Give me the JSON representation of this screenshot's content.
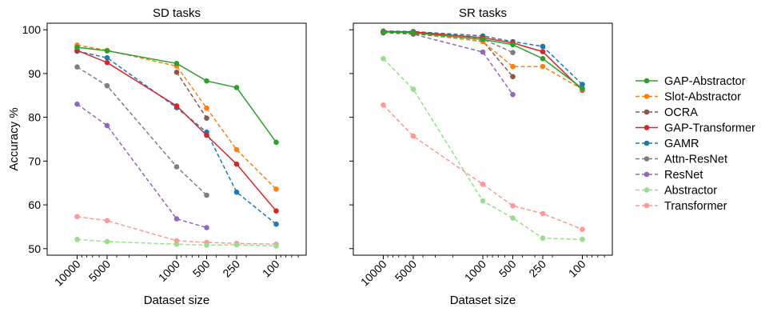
{
  "figure": {
    "ylabel": "Accuracy %",
    "xlabel": "Dataset size"
  },
  "legend": {
    "placement": "right",
    "entries": [
      {
        "name": "GAP-Abstractor",
        "color": "#2ca02c",
        "dashed": false
      },
      {
        "name": "Slot-Abstractor",
        "color": "#ff7f0e",
        "dashed": true
      },
      {
        "name": "OCRA",
        "color": "#8c564b",
        "dashed": true
      },
      {
        "name": "GAP-Transformer",
        "color": "#d62728",
        "dashed": false
      },
      {
        "name": "GAMR",
        "color": "#1f77b4",
        "dashed": true
      },
      {
        "name": "Attn-ResNet",
        "color": "#7f7f7f",
        "dashed": true
      },
      {
        "name": "ResNet",
        "color": "#9467bd",
        "dashed": true
      },
      {
        "name": "Abstractor",
        "color": "#98df8a",
        "dashed": true
      },
      {
        "name": "Transformer",
        "color": "#ff9896",
        "dashed": true
      }
    ]
  },
  "chart_data": [
    {
      "type": "line",
      "title": "SD tasks",
      "xlabel": "Dataset size",
      "ylabel": "Accuracy %",
      "xscale": "log",
      "xaxis_reversed": true,
      "xticks": [
        10000,
        5000,
        1000,
        500,
        250,
        100
      ],
      "yticks": [
        50,
        60,
        70,
        80,
        90,
        100
      ],
      "ylim": [
        48.5,
        101.5
      ],
      "series": [
        {
          "name": "GAP-Abstractor",
          "x": [
            10000,
            5000,
            1000,
            500,
            250,
            100
          ],
          "y": [
            96.0,
            95.2,
            92.3,
            88.3,
            86.8,
            74.3
          ]
        },
        {
          "name": "Slot-Abstractor",
          "x": [
            10000,
            5000,
            1000,
            500,
            250,
            100
          ],
          "y": [
            96.5,
            95.3,
            91.7,
            82.1,
            72.6,
            63.6
          ]
        },
        {
          "name": "OCRA",
          "x": [
            1000,
            500
          ],
          "y": [
            90.3,
            79.8
          ]
        },
        {
          "name": "GAP-Transformer",
          "x": [
            10000,
            5000,
            1000,
            500,
            250,
            100
          ],
          "y": [
            95.3,
            92.5,
            82.6,
            75.9,
            69.3,
            58.6
          ]
        },
        {
          "name": "GAMR",
          "x": [
            10000,
            5000,
            1000,
            500,
            250,
            100
          ],
          "y": [
            95.1,
            93.6,
            82.2,
            76.6,
            62.9,
            55.6
          ]
        },
        {
          "name": "Attn-ResNet",
          "x": [
            10000,
            5000,
            1000,
            500
          ],
          "y": [
            91.5,
            87.2,
            68.7,
            62.2
          ]
        },
        {
          "name": "ResNet",
          "x": [
            10000,
            5000,
            1000,
            500
          ],
          "y": [
            83.0,
            78.1,
            56.8,
            54.8
          ]
        },
        {
          "name": "Abstractor",
          "x": [
            10000,
            5000,
            1000,
            500,
            250,
            100
          ],
          "y": [
            52.1,
            51.6,
            51.0,
            50.8,
            50.9,
            50.6
          ]
        },
        {
          "name": "Transformer",
          "x": [
            10000,
            5000,
            1000,
            500,
            250,
            100
          ],
          "y": [
            57.3,
            56.4,
            51.8,
            51.4,
            51.2,
            51.0
          ]
        }
      ]
    },
    {
      "type": "line",
      "title": "SR tasks",
      "xlabel": "Dataset size",
      "ylabel": "",
      "xscale": "log",
      "xaxis_reversed": true,
      "xticks": [
        10000,
        5000,
        1000,
        500,
        250,
        100
      ],
      "yticks": [
        50,
        60,
        70,
        80,
        90,
        100
      ],
      "ylim": [
        48.5,
        101.5
      ],
      "series": [
        {
          "name": "GAP-Abstractor",
          "x": [
            10000,
            5000,
            1000,
            500,
            250,
            100
          ],
          "y": [
            99.5,
            99.3,
            97.8,
            96.6,
            93.4,
            86.6
          ]
        },
        {
          "name": "Slot-Abstractor",
          "x": [
            10000,
            5000,
            1000,
            500,
            250,
            100
          ],
          "y": [
            99.5,
            99.3,
            97.3,
            91.6,
            91.6,
            86.4
          ]
        },
        {
          "name": "OCRA",
          "x": [
            10000,
            5000,
            1000,
            500
          ],
          "y": [
            99.3,
            99.1,
            97.4,
            89.3
          ]
        },
        {
          "name": "GAP-Transformer",
          "x": [
            10000,
            5000,
            1000,
            500,
            250,
            100
          ],
          "y": [
            99.6,
            99.5,
            98.2,
            97.0,
            95.0,
            86.2
          ]
        },
        {
          "name": "GAMR",
          "x": [
            10000,
            5000,
            1000,
            500,
            250,
            100
          ],
          "y": [
            99.7,
            99.6,
            98.6,
            97.3,
            96.2,
            87.5
          ]
        },
        {
          "name": "Attn-ResNet",
          "x": [
            10000,
            5000,
            1000,
            500
          ],
          "y": [
            99.3,
            99.1,
            97.9,
            94.8
          ]
        },
        {
          "name": "ResNet",
          "x": [
            10000,
            5000,
            1000,
            500
          ],
          "y": [
            99.4,
            99.0,
            94.9,
            85.2
          ]
        },
        {
          "name": "Abstractor",
          "x": [
            10000,
            5000,
            1000,
            500,
            250,
            100
          ],
          "y": [
            93.4,
            86.4,
            60.9,
            57.0,
            52.4,
            52.1
          ]
        },
        {
          "name": "Transformer",
          "x": [
            10000,
            5000,
            1000,
            500,
            250,
            100
          ],
          "y": [
            82.8,
            75.7,
            64.7,
            59.8,
            58.0,
            54.4
          ]
        }
      ]
    }
  ]
}
